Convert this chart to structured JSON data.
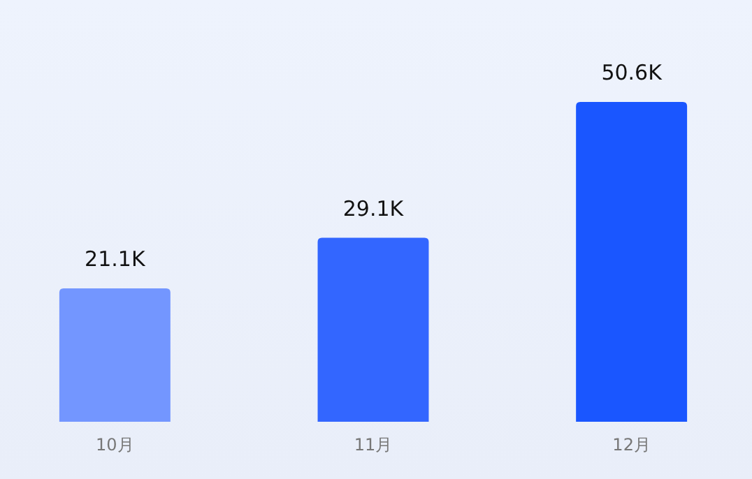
{
  "chart_data": {
    "type": "bar",
    "categories": [
      "10月",
      "11月",
      "12月"
    ],
    "values": [
      21.1,
      29.1,
      50.6
    ],
    "colors": [
      "#7396ff",
      "#3366ff",
      "#1a56ff"
    ],
    "value_labels": [
      "21.1K",
      "29.1K",
      "50.6K"
    ]
  }
}
